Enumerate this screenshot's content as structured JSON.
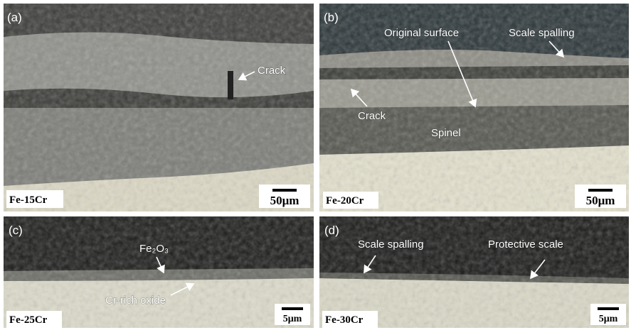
{
  "panels": [
    {
      "label": "(a)",
      "sample": "Fe-15Cr",
      "scale_bar": "50μm",
      "annotations": [
        "Crack"
      ]
    },
    {
      "label": "(b)",
      "sample": "Fe-20Cr",
      "scale_bar": "50μm",
      "annotations": [
        "Original surface",
        "Scale spalling",
        "Crack",
        "Spinel"
      ]
    },
    {
      "label": "(c)",
      "sample": "Fe-25Cr",
      "scale_bar": "5μm",
      "annotations": [
        "Fe₂O₃",
        "Cr-rich oxide"
      ]
    },
    {
      "label": "(d)",
      "sample": "Fe-30Cr",
      "scale_bar": "5μm",
      "annotations": [
        "Scale spalling",
        "Protective scale"
      ]
    }
  ]
}
